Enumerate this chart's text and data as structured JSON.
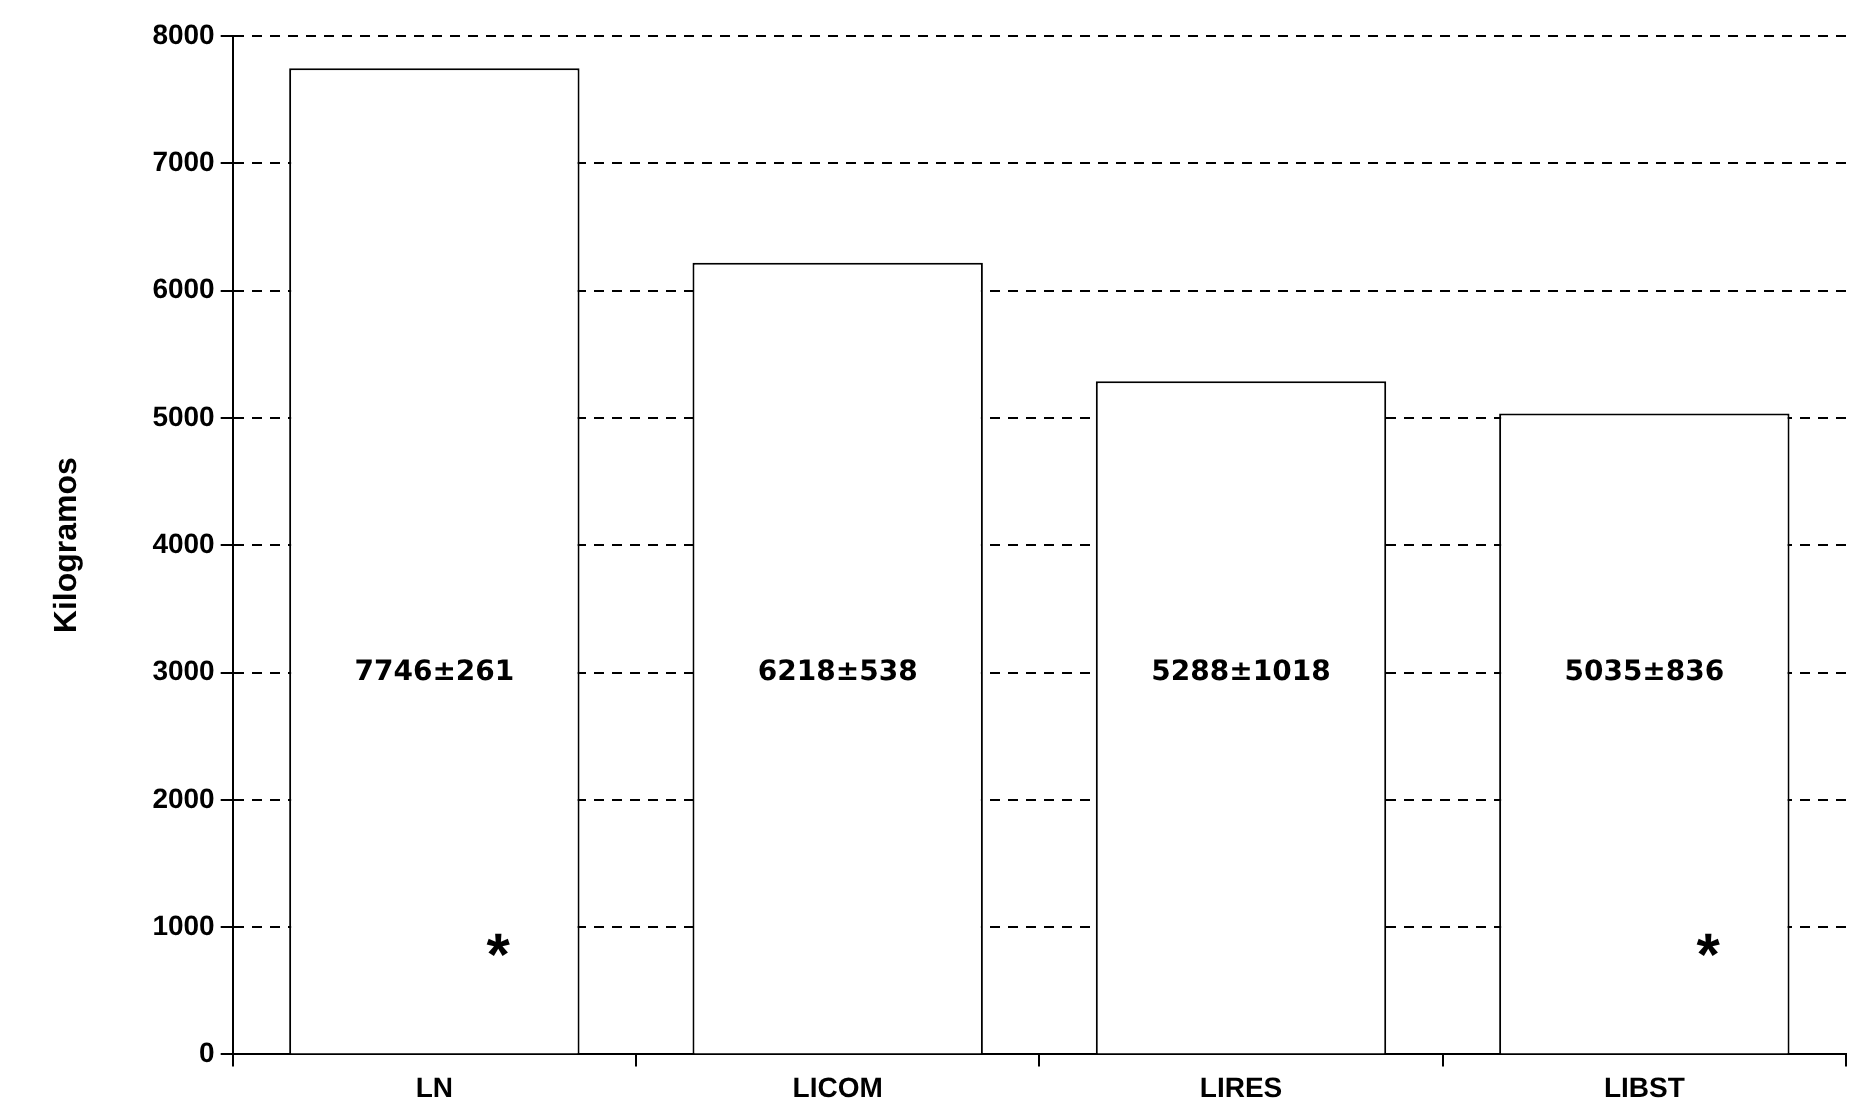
{
  "chart_data": {
    "type": "bar",
    "ylabel": "Kilogramos",
    "categories": [
      "LN",
      "LICOM",
      "LIRES",
      "LIBST"
    ],
    "values": [
      7746,
      6218,
      5288,
      5035
    ],
    "value_labels": [
      "7746±261",
      "6218±538",
      "5288±1018",
      "5035±836"
    ],
    "color": "#ffffff",
    "ylim": [
      0,
      8000
    ],
    "yticks": [
      0,
      1000,
      2000,
      3000,
      4000,
      5000,
      6000,
      7000,
      8000
    ],
    "grid": "y",
    "legend": false,
    "annotations": [
      "*",
      "*"
    ]
  }
}
